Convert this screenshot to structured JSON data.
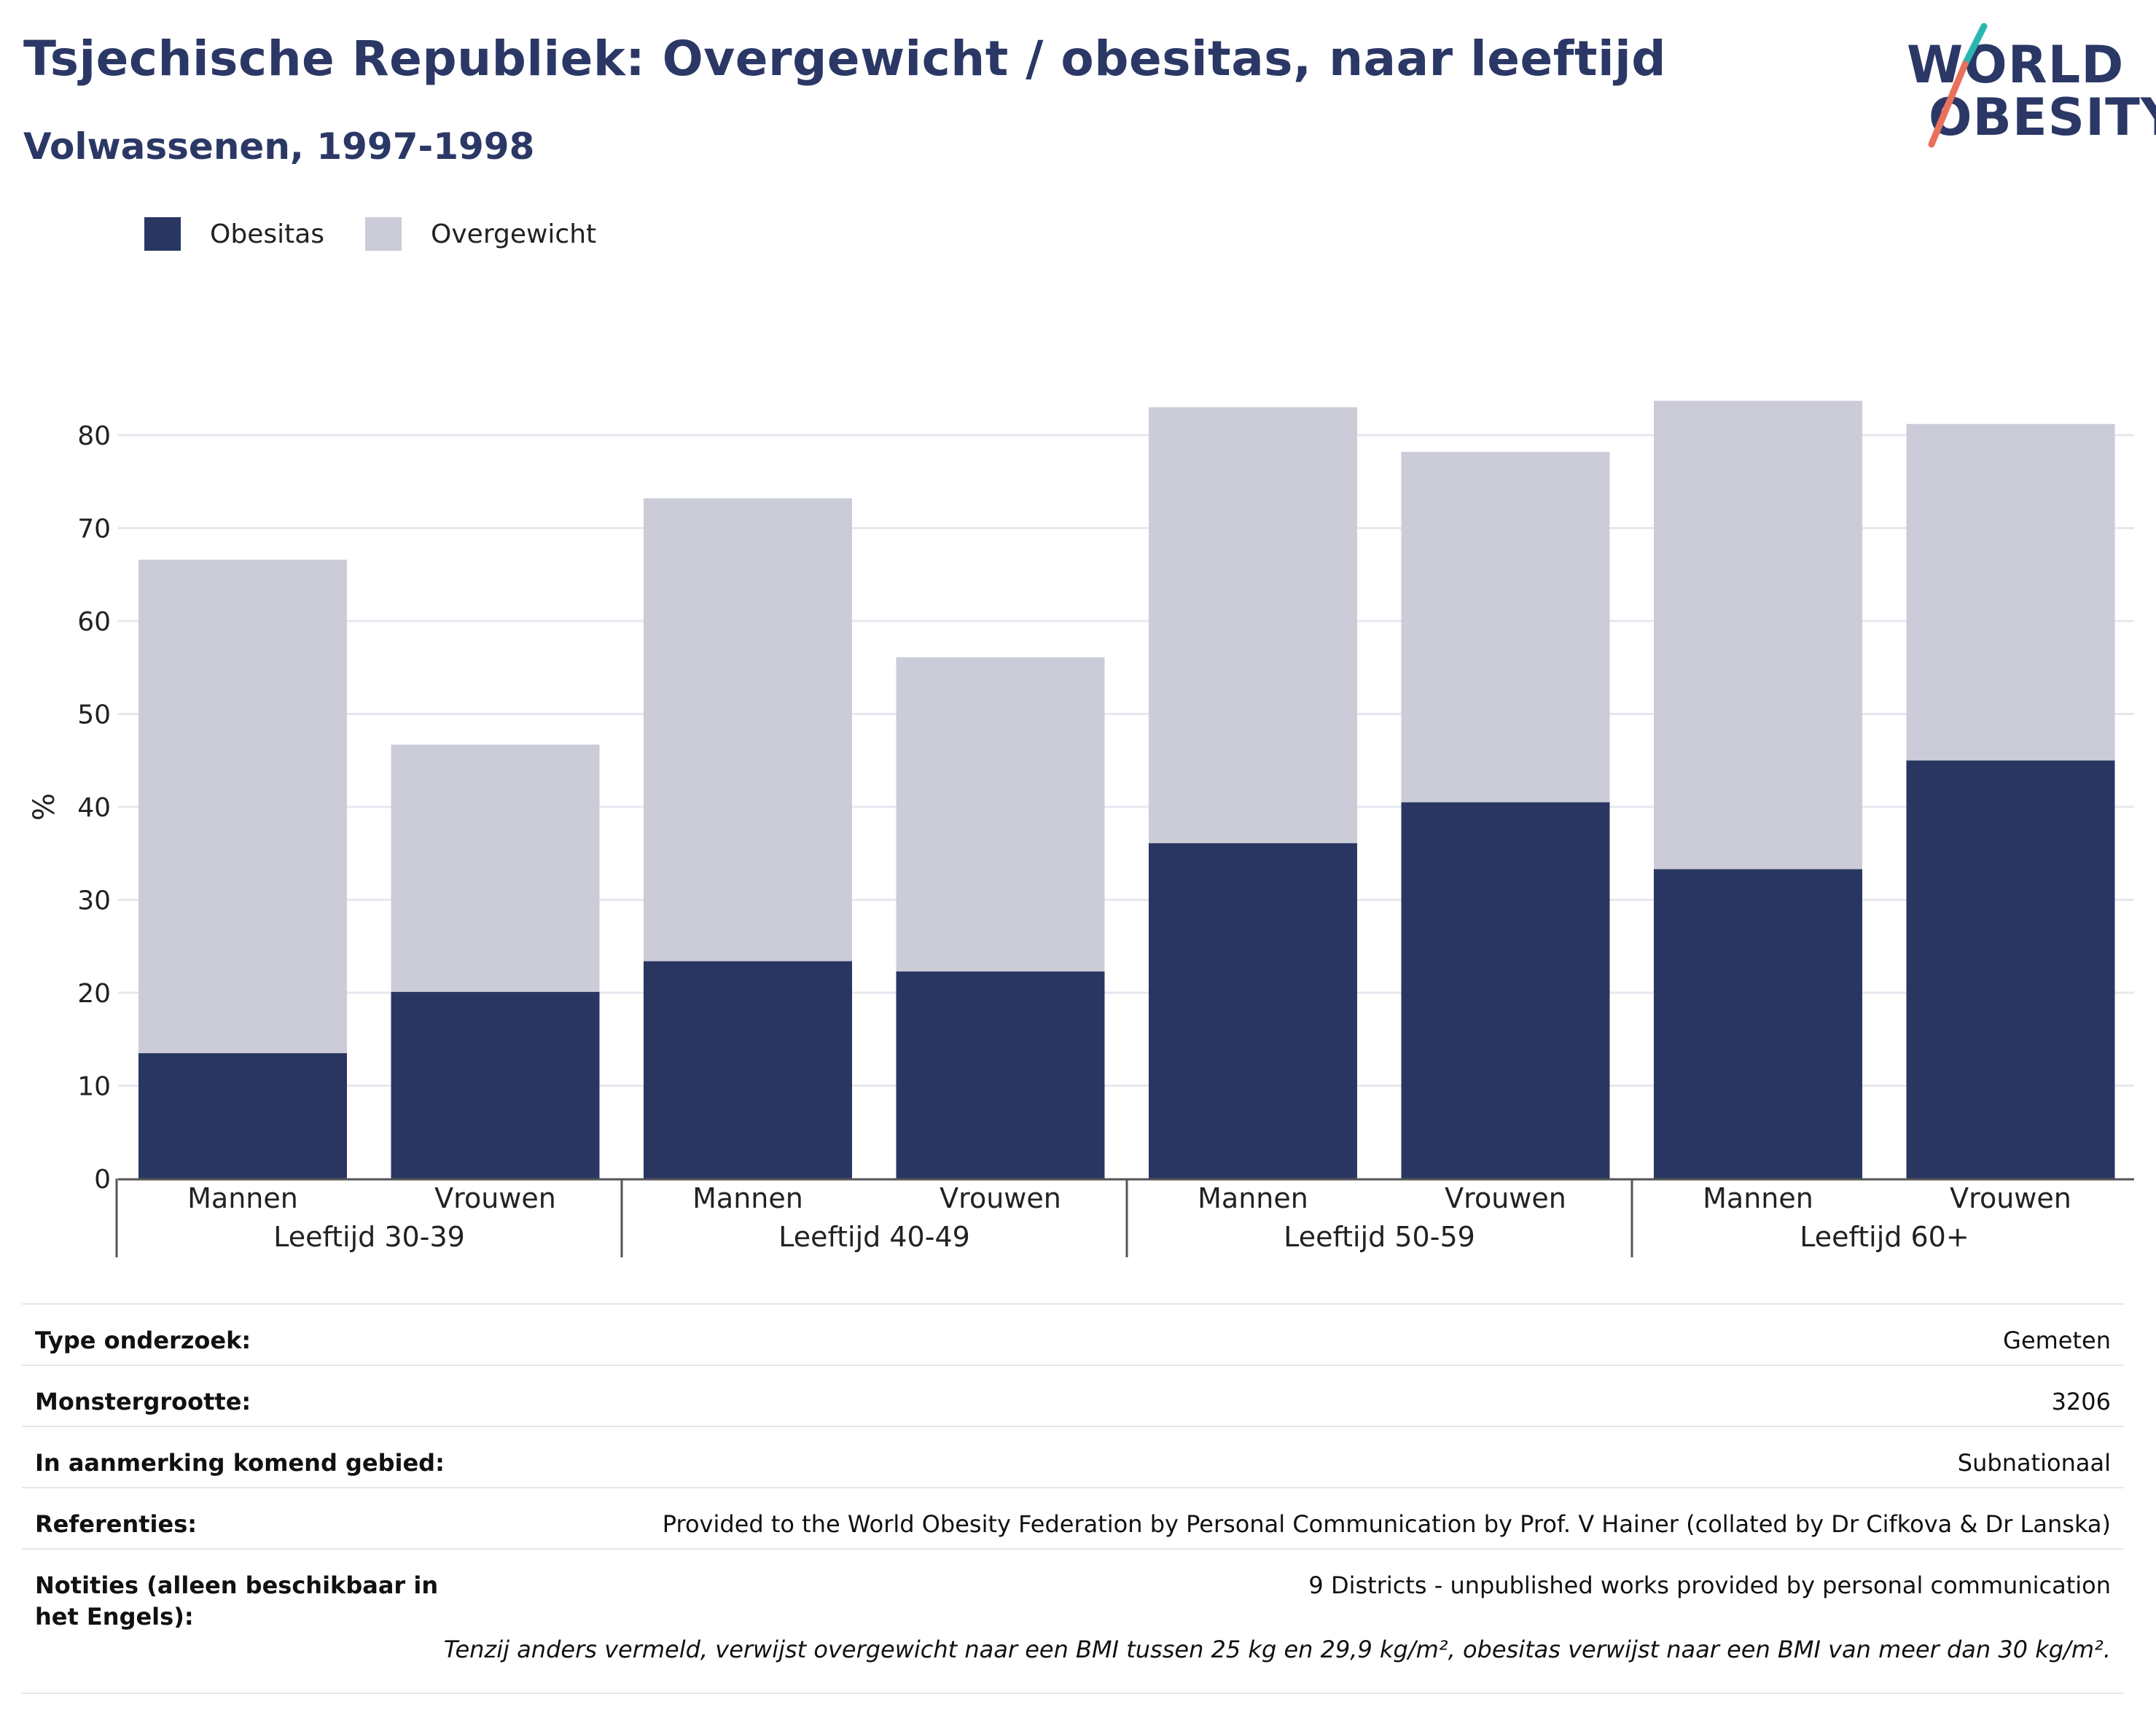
{
  "header": {
    "title": "Tsjechische Republiek: Overgewicht / obesitas, naar leeftijd",
    "subtitle": "Volwassenen, 1997-1998"
  },
  "logo": {
    "line1": "WORLD",
    "line2": "OBESITY"
  },
  "legend": [
    {
      "label": "Obesitas",
      "color": "#2a3662"
    },
    {
      "label": "Overgewicht",
      "color": "#cbccd8"
    }
  ],
  "chart_data": {
    "type": "bar",
    "stacked": true,
    "ylabel": "%",
    "ylim": [
      0,
      85
    ],
    "yticks": [
      0,
      10,
      20,
      30,
      40,
      50,
      60,
      70,
      80
    ],
    "grid": true,
    "legend_position": "top-left",
    "groups": [
      "Leeftijd 30-39",
      "Leeftijd 40-49",
      "Leeftijd 50-59",
      "Leeftijd 60+"
    ],
    "categories": [
      "Mannen",
      "Vrouwen",
      "Mannen",
      "Vrouwen",
      "Mannen",
      "Vrouwen",
      "Mannen",
      "Vrouwen"
    ],
    "series": [
      {
        "name": "Obesitas",
        "color": "#2a3662",
        "values": [
          13.5,
          20.1,
          23.4,
          22.3,
          36.1,
          40.5,
          33.3,
          45.0
        ]
      },
      {
        "name": "Overgewicht",
        "color": "#cbccd8",
        "values": [
          53.1,
          26.6,
          49.8,
          33.8,
          46.9,
          37.7,
          50.4,
          36.2
        ]
      }
    ]
  },
  "info": [
    {
      "key": "Type onderzoek:",
      "value": "Gemeten"
    },
    {
      "key": "Monstergrootte:",
      "value": "3206"
    },
    {
      "key": "In aanmerking komend gebied:",
      "value": "Subnationaal"
    },
    {
      "key": "Referenties:",
      "value": "Provided to the World Obesity Federation by Personal Communication by Prof. V Hainer (collated by Dr Cifkova & Dr Lanska)"
    },
    {
      "key": "Notities (alleen beschikbaar in het Engels):",
      "value": "9 Districts - unpublished works provided by personal communication"
    }
  ],
  "footnote": "Tenzij anders vermeld, verwijst overgewicht naar een BMI tussen 25 kg en 29,9 kg/m², obesitas verwijst naar een BMI van meer dan 30 kg/m²."
}
